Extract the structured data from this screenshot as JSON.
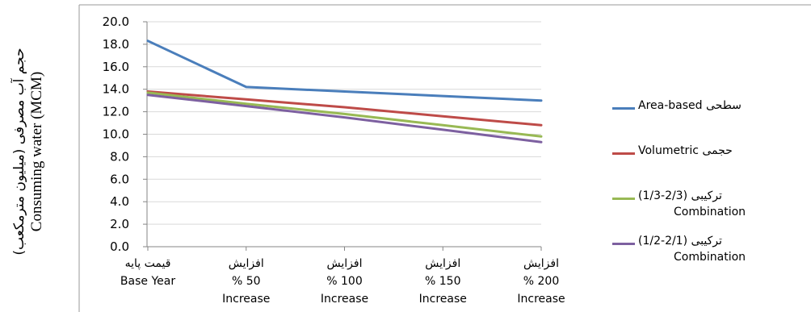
{
  "chart_data": {
    "type": "line",
    "ylabel_fa": "حجم آب مصرفی (میلیون مترمکعب)",
    "ylabel_en": "Consuming water (MCM)",
    "ylim": [
      0,
      20
    ],
    "ytick_step": 2,
    "ytick_labels": [
      "0.0",
      "2.0",
      "4.0",
      "6.0",
      "8.0",
      "10.0",
      "12.0",
      "14.0",
      "16.0",
      "18.0",
      "20.0"
    ],
    "grid": "horizontal",
    "legend_position": "right",
    "categories": [
      {
        "fa": "قیمت پایه",
        "en1": "Base Year",
        "en2": ""
      },
      {
        "fa": "افزایش",
        "en1": "% 50",
        "en2": "Increase"
      },
      {
        "fa": "افزایش",
        "en1": "% 100",
        "en2": "Increase"
      },
      {
        "fa": "افزایش",
        "en1": "% 150",
        "en2": "Increase"
      },
      {
        "fa": "افزایش",
        "en1": "% 200",
        "en2": "Increase"
      }
    ],
    "series": [
      {
        "name": "Area-based سطحی",
        "name_line2": "",
        "color": "#4a7ebb",
        "values": [
          18.3,
          14.2,
          13.8,
          13.4,
          13.0
        ]
      },
      {
        "name": "Volumetric حجمی",
        "name_line2": "",
        "color": "#be4b48",
        "values": [
          13.8,
          13.1,
          12.4,
          11.6,
          10.8
        ]
      },
      {
        "name": "ترکیبی (2/3-1/3)",
        "name_line2": "Combination",
        "color": "#98b954",
        "values": [
          13.7,
          12.7,
          11.8,
          10.8,
          9.8
        ]
      },
      {
        "name": "ترکیبی (2/1-1/2)",
        "name_line2": "Combination",
        "color": "#7d60a0",
        "values": [
          13.5,
          12.5,
          11.5,
          10.4,
          9.3
        ]
      }
    ]
  }
}
